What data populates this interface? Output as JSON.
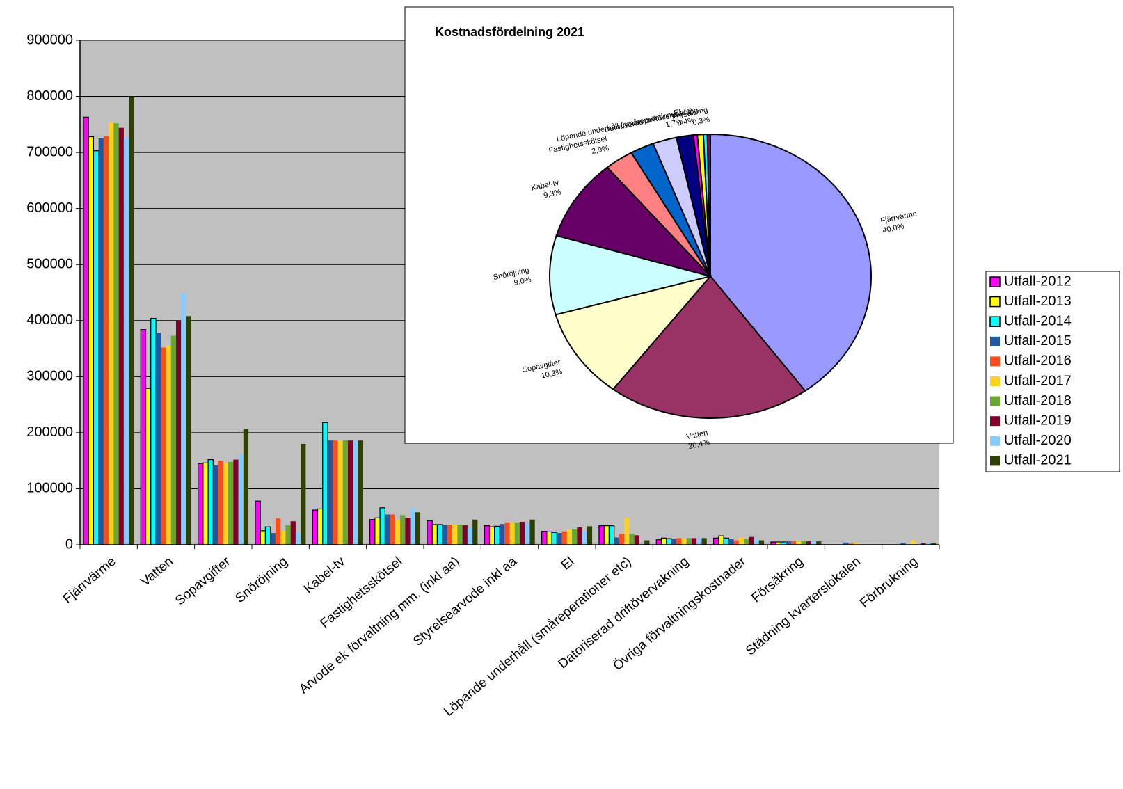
{
  "chart_data": [
    {
      "type": "bar",
      "categories": [
        "Fjärrvärme",
        "Vatten",
        "Sopavgifter",
        "Snöröjning",
        "Kabel-tv",
        "Fastighetsskötsel",
        "Arvode ek förvaltning mm. (inkl aa)",
        "Styrelsearvode inkl aa",
        "El",
        "Löpande underhåll (småreperationer etc)",
        "Datoriserad driftövervakning",
        "Övriga förvaltningskostnader",
        "Försäkring",
        "Städning kvarterslokalen",
        "Förbrukning"
      ],
      "series": [
        {
          "name": "Utfall-2012",
          "color": "#ff00ff",
          "values": [
            763000,
            384000,
            145000,
            78000,
            62000,
            45000,
            43000,
            34000,
            24000,
            34000,
            9000,
            12000,
            5000,
            0,
            0
          ]
        },
        {
          "name": "Utfall-2013",
          "color": "#ffff00",
          "values": [
            728000,
            279000,
            146000,
            25000,
            64000,
            48000,
            36000,
            32000,
            23000,
            34000,
            12000,
            16000,
            5000,
            0,
            0
          ]
        },
        {
          "name": "Utfall-2014",
          "color": "#00ffff",
          "values": [
            703000,
            404000,
            152000,
            32000,
            218000,
            66000,
            36000,
            33000,
            22000,
            34000,
            11000,
            12000,
            5000,
            0,
            0
          ]
        },
        {
          "name": "Utfall-2015",
          "color": "#1f5aa0",
          "values": [
            725000,
            378000,
            142000,
            21000,
            186000,
            54000,
            36000,
            37000,
            21000,
            13000,
            11000,
            10000,
            6000,
            4000,
            3000
          ]
        },
        {
          "name": "Utfall-2016",
          "color": "#ff4c1c",
          "values": [
            729000,
            352000,
            150000,
            47000,
            186000,
            54000,
            36000,
            40000,
            24000,
            19000,
            12000,
            8000,
            6000,
            2000,
            0
          ]
        },
        {
          "name": "Utfall-2017",
          "color": "#ffd21f",
          "values": [
            753000,
            355000,
            146000,
            25000,
            186000,
            44000,
            36000,
            40000,
            27000,
            48000,
            11000,
            13000,
            6000,
            4000,
            8000
          ]
        },
        {
          "name": "Utfall-2018",
          "color": "#66a832",
          "values": [
            752000,
            373000,
            148000,
            35000,
            186000,
            53000,
            36000,
            40000,
            28000,
            19000,
            12000,
            10000,
            7000,
            0,
            0
          ]
        },
        {
          "name": "Utfall-2019",
          "color": "#800028",
          "values": [
            744000,
            400000,
            152000,
            42000,
            186000,
            48000,
            35000,
            41000,
            31000,
            17000,
            12000,
            14000,
            6000,
            0,
            3000
          ]
        },
        {
          "name": "Utfall-2020",
          "color": "#88ccff",
          "values": [
            726000,
            449000,
            162000,
            22000,
            186000,
            65000,
            30000,
            38000,
            25000,
            3000,
            12000,
            10000,
            6000,
            0,
            4000
          ]
        },
        {
          "name": "Utfall-2021",
          "color": "#2f4000",
          "values": [
            800000,
            408000,
            206000,
            180000,
            186000,
            58000,
            45000,
            45000,
            33000,
            8000,
            12000,
            8000,
            6000,
            0,
            3000
          ]
        }
      ],
      "ylim": [
        0,
        900000
      ],
      "yticks": [
        0,
        100000,
        200000,
        300000,
        400000,
        500000,
        600000,
        700000,
        800000,
        900000
      ],
      "grid": true
    },
    {
      "type": "pie",
      "title": "Kostnadsfördelning 2021",
      "categories": [
        "Fjärrvärme",
        "Vatten",
        "Sopavgifter",
        "Snöröjning",
        "Kabel-tv",
        "Fastighetsskötsel",
        null,
        null,
        "El",
        "Löpande underhåll (småreperationer etc)",
        "Datoriserad driftövervakning",
        null,
        "Försäkring"
      ],
      "values": [
        40.0,
        20.4,
        10.3,
        9.0,
        9.3,
        2.9,
        2.4,
        2.4,
        1.7,
        0.4,
        0.6,
        0.4,
        0.3
      ],
      "value_labels": [
        "40,0%",
        "20,4%",
        "10,3%",
        "9,0%",
        "9,3%",
        "2,9%",
        null,
        null,
        "1,7%",
        "0,4%",
        null,
        null,
        "0,3%"
      ],
      "colors": [
        "#9999ff",
        "#993366",
        "#ffffcc",
        "#ccffff",
        "#660066",
        "#ff8080",
        "#0066cc",
        "#ccccff",
        "#000080",
        "#ff00ff",
        "#ffff00",
        "#00ffff",
        "#800080"
      ]
    }
  ]
}
